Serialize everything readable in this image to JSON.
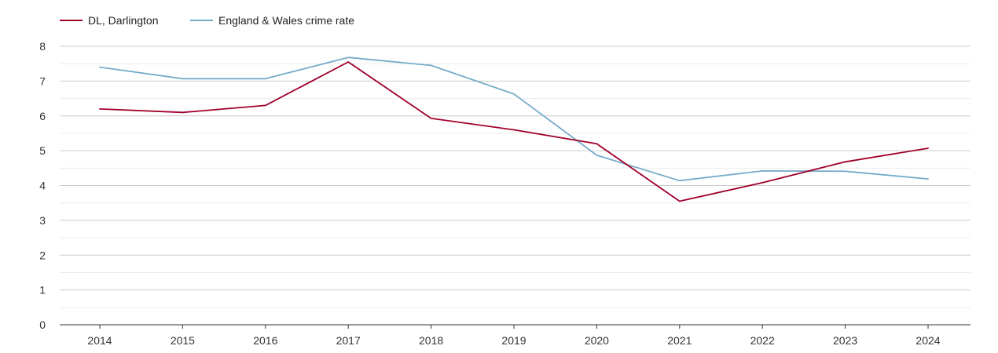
{
  "chart_data": {
    "type": "line",
    "title": "",
    "xlabel": "",
    "ylabel": "",
    "categories": [
      "2014",
      "2015",
      "2016",
      "2017",
      "2018",
      "2019",
      "2020",
      "2021",
      "2022",
      "2023",
      "2024"
    ],
    "ylim": [
      0,
      8
    ],
    "yticks": [
      0,
      1,
      2,
      3,
      4,
      5,
      6,
      7,
      8
    ],
    "grid": true,
    "legend_position": "top-left",
    "series": [
      {
        "name": "DL, Darlington",
        "color": "#a0002a",
        "values": [
          6.2,
          6.1,
          6.3,
          7.55,
          5.93,
          5.6,
          5.2,
          3.55,
          4.08,
          4.68,
          5.07
        ]
      },
      {
        "name": "England & Wales crime rate",
        "color": "#75abc9",
        "values": [
          7.4,
          7.07,
          7.07,
          7.68,
          7.45,
          6.63,
          4.87,
          4.14,
          4.42,
          4.41,
          4.19
        ]
      }
    ]
  }
}
